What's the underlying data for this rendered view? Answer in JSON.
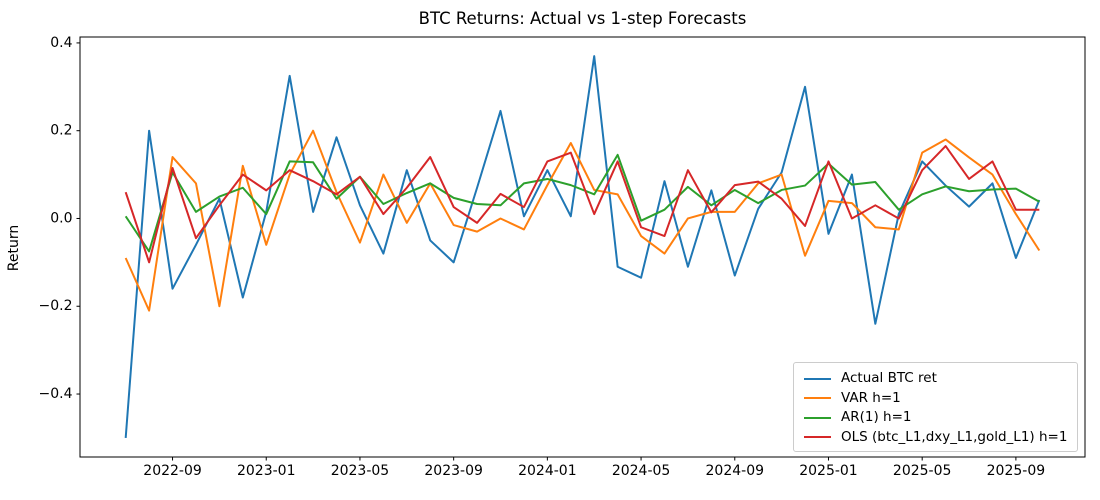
{
  "chart_data": {
    "type": "line",
    "title": "BTC Returns: Actual vs 1-step Forecasts",
    "xlabel": "",
    "ylabel": "Return",
    "grid": false,
    "legend_position": "lower right",
    "ylim": [
      -0.5435,
      0.4135
    ],
    "y_ticks": [
      0.4,
      0.2,
      0.0,
      -0.2,
      -0.4
    ],
    "x_labels": [
      "2022-07",
      "2022-08",
      "2022-09",
      "2022-10",
      "2022-11",
      "2022-12",
      "2023-01",
      "2023-02",
      "2023-03",
      "2023-04",
      "2023-05",
      "2023-06",
      "2023-07",
      "2023-08",
      "2023-09",
      "2023-10",
      "2023-11",
      "2023-12",
      "2024-01",
      "2024-02",
      "2024-03",
      "2024-04",
      "2024-05",
      "2024-06",
      "2024-07",
      "2024-08",
      "2024-09",
      "2024-10",
      "2024-11",
      "2024-12",
      "2025-01",
      "2025-02",
      "2025-03",
      "2025-04",
      "2025-05",
      "2025-06",
      "2025-07",
      "2025-08",
      "2025-09",
      "2025-10"
    ],
    "x_tick_indices": [
      2,
      6,
      10,
      14,
      18,
      22,
      26,
      30,
      34,
      38
    ],
    "x_tick_labels": [
      "2022-09",
      "2023-01",
      "2023-05",
      "2023-09",
      "2024-01",
      "2024-05",
      "2024-09",
      "2025-01",
      "2025-05",
      "2025-09"
    ],
    "series": [
      {
        "name": "Actual BTC ret",
        "color": "#1f77b4",
        "values": [
          -0.5,
          0.2,
          -0.16,
          -0.06,
          0.045,
          -0.18,
          0.015,
          0.325,
          0.015,
          0.185,
          0.03,
          -0.08,
          0.11,
          -0.05,
          -0.1,
          0.07,
          0.245,
          0.005,
          0.11,
          0.005,
          0.37,
          -0.11,
          -0.135,
          0.085,
          -0.11,
          0.064,
          -0.13,
          0.022,
          0.105,
          0.3,
          -0.035,
          0.1,
          -0.24,
          0.01,
          0.13,
          0.075,
          0.027,
          0.08,
          -0.09,
          0.042
        ]
      },
      {
        "name": "VAR h=1",
        "color": "#ff7f0e",
        "values": [
          -0.09,
          -0.21,
          0.14,
          0.08,
          -0.2,
          0.12,
          -0.06,
          0.1,
          0.2,
          0.06,
          -0.055,
          0.1,
          -0.01,
          0.08,
          -0.015,
          -0.03,
          0.0,
          -0.025,
          0.076,
          0.172,
          0.065,
          0.055,
          -0.04,
          -0.08,
          0.0,
          0.015,
          0.015,
          0.08,
          0.1,
          -0.085,
          0.04,
          0.035,
          -0.02,
          -0.025,
          0.15,
          0.18,
          0.139,
          0.1,
          0.01,
          -0.073
        ]
      },
      {
        "name": "AR(1) h=1",
        "color": "#2ca02c",
        "values": [
          0.005,
          -0.075,
          0.105,
          0.015,
          0.05,
          0.07,
          0.01,
          0.13,
          0.128,
          0.045,
          0.095,
          0.033,
          0.058,
          0.08,
          0.047,
          0.033,
          0.03,
          0.08,
          0.09,
          0.076,
          0.055,
          0.145,
          -0.005,
          0.02,
          0.072,
          0.03,
          0.065,
          0.035,
          0.065,
          0.075,
          0.125,
          0.077,
          0.083,
          0.02,
          0.055,
          0.073,
          0.062,
          0.066,
          0.068,
          0.038
        ]
      },
      {
        "name": "OLS (btc_L1,dxy_L1,gold_L1) h=1",
        "color": "#d62728",
        "values": [
          0.06,
          -0.1,
          0.115,
          -0.045,
          0.03,
          0.1,
          0.064,
          0.11,
          0.085,
          0.055,
          0.095,
          0.01,
          0.07,
          0.14,
          0.026,
          -0.01,
          0.056,
          0.026,
          0.13,
          0.15,
          0.01,
          0.13,
          -0.02,
          -0.04,
          0.11,
          0.014,
          0.076,
          0.084,
          0.045,
          -0.017,
          0.13,
          0.0,
          0.03,
          0.0,
          0.11,
          0.165,
          0.09,
          0.13,
          0.02,
          0.02
        ]
      }
    ]
  }
}
